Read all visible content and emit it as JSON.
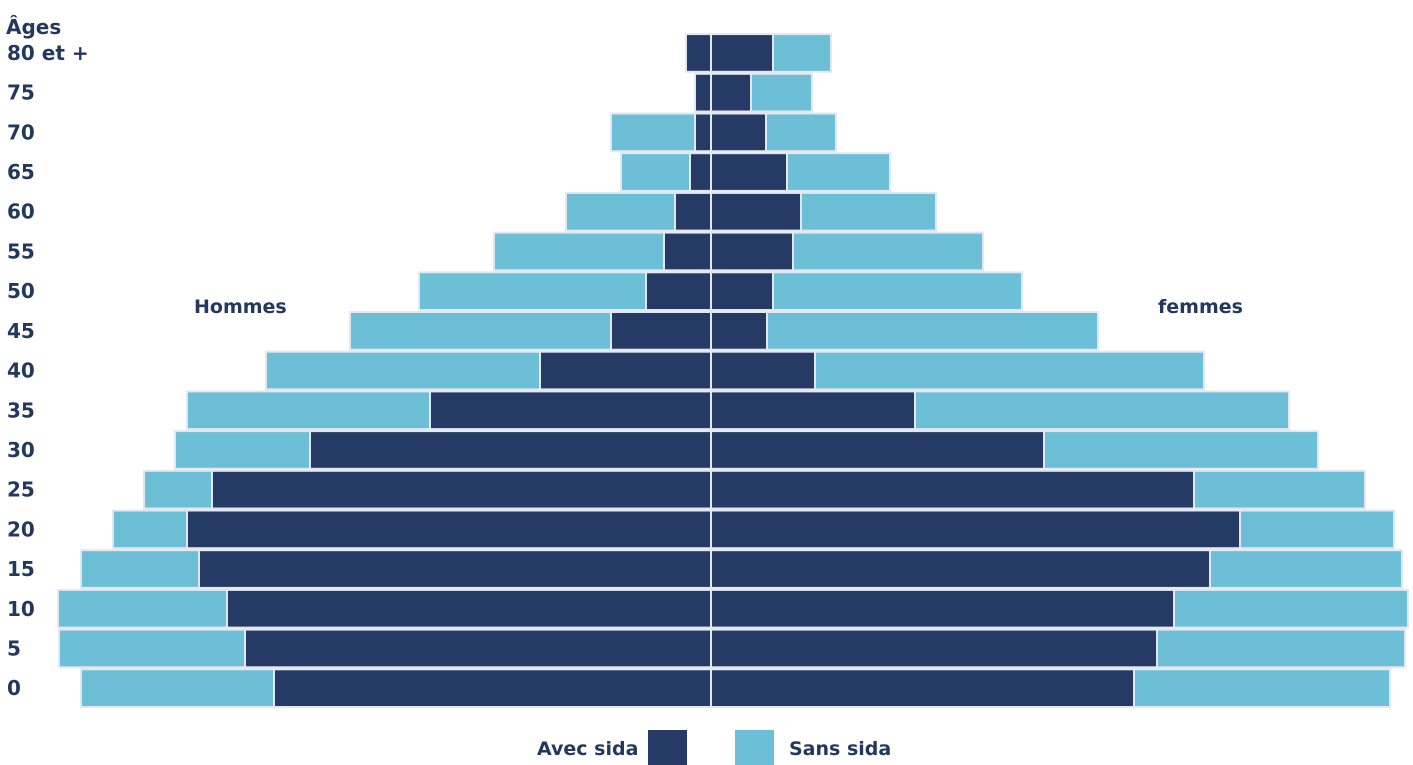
{
  "chart_data": {
    "type": "bar",
    "subtype": "population-pyramid",
    "y_title": "Âges",
    "categories": [
      "0",
      "5",
      "10",
      "15",
      "20",
      "25",
      "30",
      "35",
      "40",
      "45",
      "50",
      "55",
      "60",
      "65",
      "70",
      "75",
      "80 et +"
    ],
    "left_label": "Hommes",
    "right_label": "femmes",
    "legend": {
      "with_label": "Avec sida",
      "without_label": "Sans sida",
      "placement": "bottom"
    },
    "colors": {
      "with": "#253a64",
      "without": "#6cbfd6",
      "text": "#23385f",
      "separator": "#e3e8f0"
    },
    "units_note": "bar lengths in arbitrary units (relative)",
    "hommes": {
      "avec_sida": [
        437,
        466,
        484,
        512,
        524,
        499,
        401,
        281,
        171,
        100,
        65,
        47,
        36,
        21,
        16,
        16,
        25
      ],
      "sans_sida": [
        193,
        186,
        169,
        118,
        74,
        68,
        135,
        243,
        274,
        261,
        227,
        170,
        109,
        69,
        84,
        0,
        0
      ]
    },
    "femmes": {
      "avec_sida": [
        423,
        446,
        463,
        499,
        529,
        483,
        333,
        204,
        104,
        56,
        62,
        82,
        90,
        76,
        55,
        40,
        62
      ],
      "sans_sida": [
        256,
        248,
        234,
        192,
        154,
        171,
        274,
        374,
        389,
        331,
        249,
        190,
        135,
        103,
        70,
        61,
        58
      ]
    }
  }
}
